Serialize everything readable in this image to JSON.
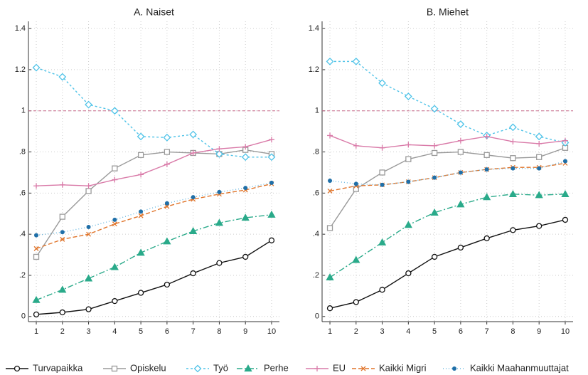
{
  "chart_data": [
    {
      "type": "line",
      "title": "A. Naiset",
      "x": [
        1,
        2,
        3,
        4,
        5,
        6,
        7,
        8,
        9,
        10
      ],
      "xlim": [
        0.7,
        10.3
      ],
      "xticks": [
        1,
        2,
        3,
        4,
        5,
        6,
        7,
        8,
        9,
        10
      ],
      "ylim": [
        -0.025,
        1.435
      ],
      "yticks": [
        0,
        {
          "value": 0.2,
          "label": ".2"
        },
        {
          "value": 0.4,
          "label": ".4"
        },
        {
          "value": 0.6,
          "label": ".6"
        },
        {
          "value": 0.8,
          "label": ".8"
        },
        1,
        1.2,
        1.4
      ],
      "grid": true,
      "reference_line": 1,
      "legend": "bottom",
      "series": [
        {
          "name": "Turvapaikka",
          "color": "#111111",
          "marker": "circle",
          "dash": "",
          "values": [
            0.01,
            0.02,
            0.035,
            0.075,
            0.115,
            0.155,
            0.21,
            0.26,
            0.29,
            0.37
          ]
        },
        {
          "name": "Opiskelu",
          "color": "#9a9a9a",
          "marker": "square",
          "dash": "",
          "values": [
            0.29,
            0.485,
            0.61,
            0.72,
            0.785,
            0.8,
            0.795,
            0.79,
            0.81,
            0.79
          ]
        },
        {
          "name": "Työ",
          "color": "#4fc3e8",
          "marker": "diamond",
          "dash": "3 3",
          "values": [
            1.21,
            1.165,
            1.03,
            1.0,
            0.875,
            0.87,
            0.885,
            0.79,
            0.775,
            0.775
          ]
        },
        {
          "name": "Perhe",
          "color": "#2aaa8a",
          "marker": "triangle",
          "dash": "8 3 2 3",
          "values": [
            0.08,
            0.13,
            0.185,
            0.24,
            0.31,
            0.365,
            0.415,
            0.455,
            0.48,
            0.495
          ]
        },
        {
          "name": "EU",
          "color": "#d97aa8",
          "marker": "plus",
          "dash": "",
          "values": [
            0.635,
            0.64,
            0.635,
            0.665,
            0.69,
            0.74,
            0.795,
            0.815,
            0.825,
            0.86
          ]
        },
        {
          "name": "Kaikki Migri",
          "color": "#e0742a",
          "marker": "x",
          "dash": "6 3",
          "values": [
            0.33,
            0.375,
            0.4,
            0.45,
            0.49,
            0.535,
            0.57,
            0.595,
            0.615,
            0.645
          ]
        },
        {
          "name": "Kaikki Maahanmuuttajat",
          "color": "#1f6fa8",
          "marker": "dot",
          "dash": "1 3",
          "values": [
            0.395,
            0.41,
            0.435,
            0.47,
            0.51,
            0.55,
            0.58,
            0.605,
            0.625,
            0.65
          ]
        }
      ]
    },
    {
      "type": "line",
      "title": "B. Miehet",
      "x": [
        1,
        2,
        3,
        4,
        5,
        6,
        7,
        8,
        9,
        10
      ],
      "xlim": [
        0.7,
        10.3
      ],
      "xticks": [
        1,
        2,
        3,
        4,
        5,
        6,
        7,
        8,
        9,
        10
      ],
      "ylim": [
        -0.025,
        1.435
      ],
      "yticks": [
        0,
        {
          "value": 0.2,
          "label": ".2"
        },
        {
          "value": 0.4,
          "label": ".4"
        },
        {
          "value": 0.6,
          "label": ".6"
        },
        {
          "value": 0.8,
          "label": ".8"
        },
        1,
        1.2,
        1.4
      ],
      "grid": true,
      "reference_line": 1,
      "series": [
        {
          "values": [
            0.04,
            0.07,
            0.13,
            0.21,
            0.29,
            0.335,
            0.38,
            0.42,
            0.44,
            0.47
          ]
        },
        {
          "values": [
            0.43,
            0.62,
            0.7,
            0.765,
            0.795,
            0.8,
            0.785,
            0.77,
            0.775,
            0.82
          ]
        },
        {
          "values": [
            1.24,
            1.24,
            1.135,
            1.07,
            1.01,
            0.935,
            0.88,
            0.92,
            0.875,
            0.845
          ]
        },
        {
          "values": [
            0.19,
            0.275,
            0.36,
            0.445,
            0.505,
            0.545,
            0.58,
            0.595,
            0.59,
            0.595
          ]
        },
        {
          "values": [
            0.88,
            0.83,
            0.82,
            0.835,
            0.83,
            0.855,
            0.875,
            0.85,
            0.84,
            0.855
          ]
        },
        {
          "values": [
            0.61,
            0.635,
            0.64,
            0.655,
            0.675,
            0.7,
            0.715,
            0.725,
            0.725,
            0.745
          ]
        },
        {
          "values": [
            0.66,
            0.645,
            0.64,
            0.655,
            0.675,
            0.7,
            0.715,
            0.72,
            0.72,
            0.755
          ]
        }
      ]
    }
  ]
}
